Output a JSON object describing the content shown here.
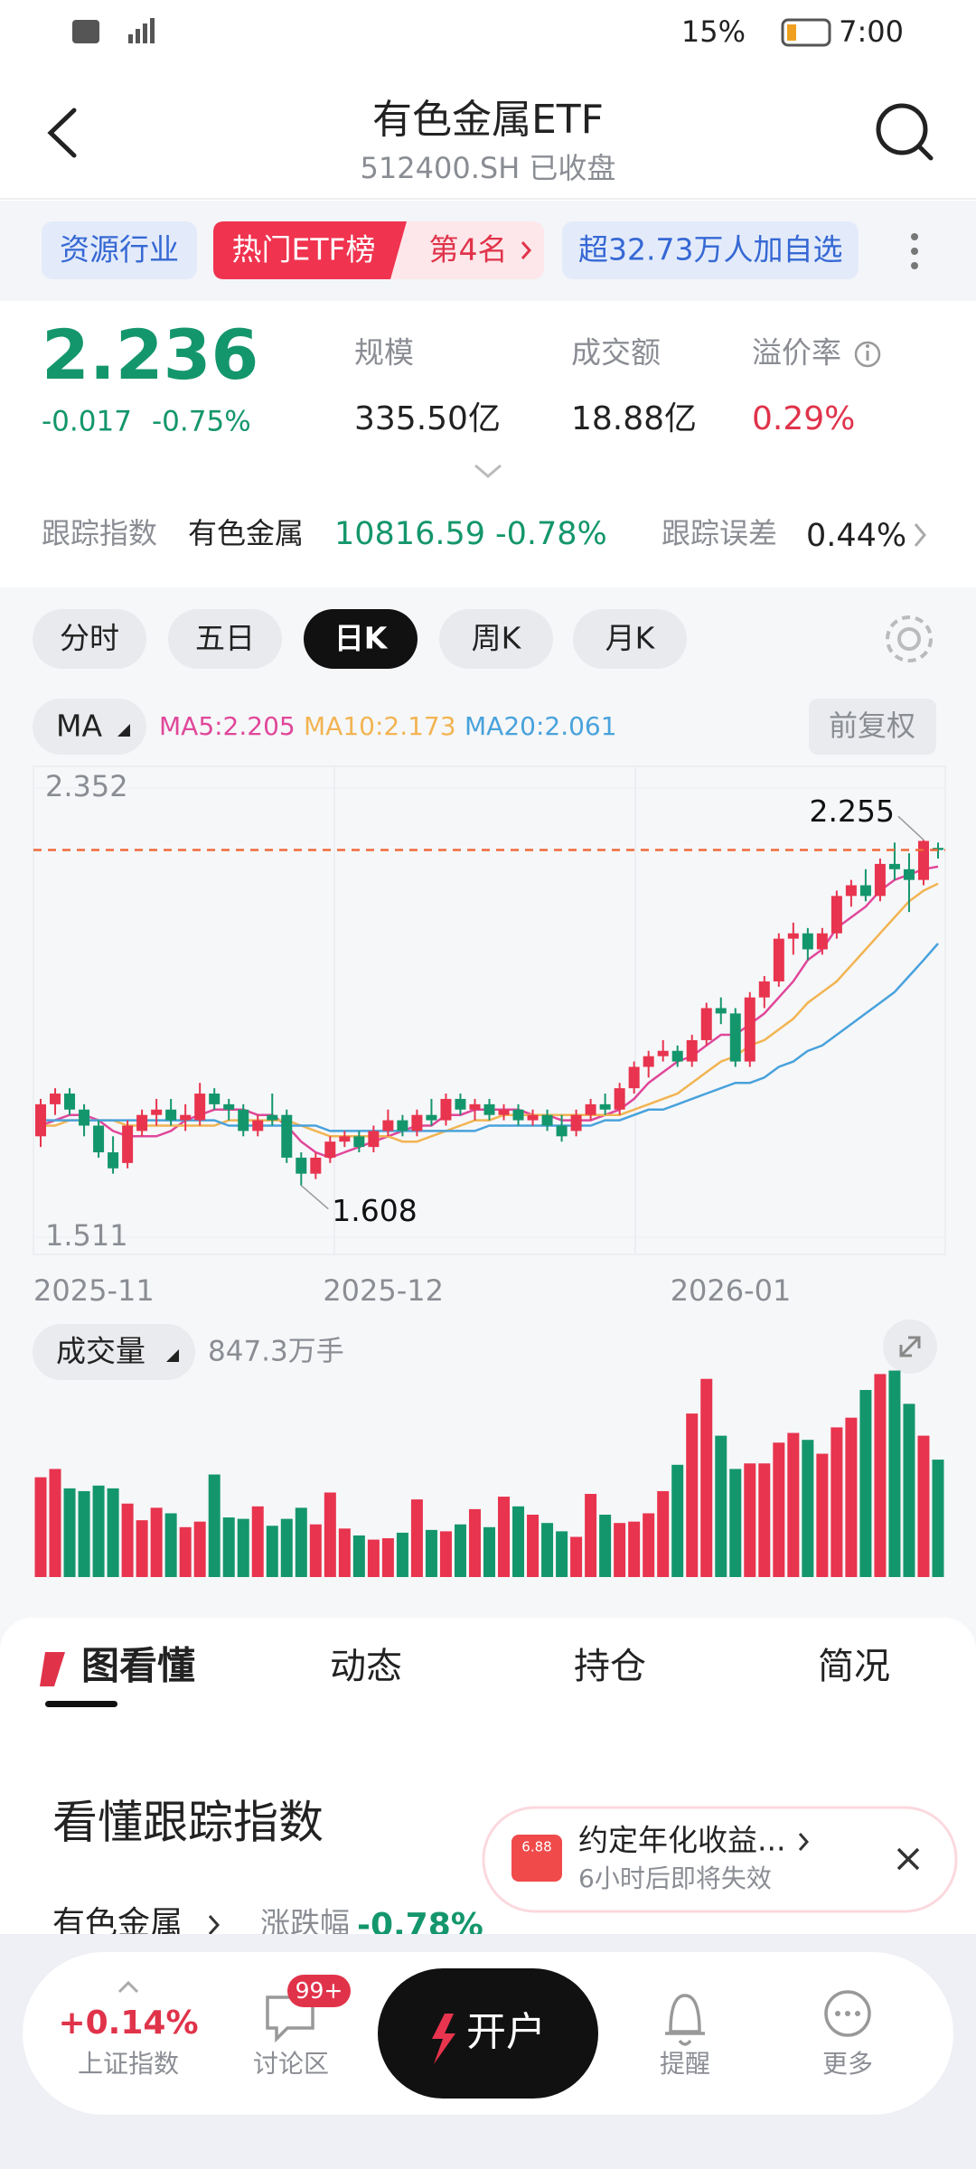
{
  "status_bar": {
    "battery": "15%",
    "time": "7:00"
  },
  "header": {
    "title": "有色金属ETF",
    "subtitle": "512400.SH 已收盘"
  },
  "tags": {
    "industry": "资源行业",
    "rank_list": "热门ETF榜",
    "rank": "第4名",
    "followers": "超32.73万人加自选"
  },
  "quote": {
    "price": 2.236,
    "change": "-0.017",
    "change_pct": "-0.75%",
    "stats": [
      {
        "label": "规模",
        "value": "335.50亿"
      },
      {
        "label": "成交额",
        "value": "18.88亿"
      },
      {
        "label": "溢价率",
        "value": "0.29%"
      }
    ]
  },
  "tracking": {
    "label": "跟踪指数",
    "index": "有色金属",
    "index_value": "10816.59",
    "index_change": "-0.78%",
    "error_label": "跟踪误差",
    "error": "0.44%"
  },
  "periods": [
    "分时",
    "五日",
    "日K",
    "周K",
    "月K"
  ],
  "ma_menu": "MA",
  "adjust": "前复权",
  "chart_data": {
    "type": "candlestick",
    "up_color": "#e8344e",
    "down_color": "#14966c",
    "open": [
      1.7,
      1.76,
      1.78,
      1.75,
      1.72,
      1.67,
      1.65,
      1.71,
      1.74,
      1.75,
      1.73,
      1.73,
      1.78,
      1.76,
      1.75,
      1.71,
      1.74,
      1.74,
      1.66,
      1.63,
      1.66,
      1.69,
      1.7,
      1.68,
      1.71,
      1.73,
      1.71,
      1.74,
      1.73,
      1.77,
      1.75,
      1.76,
      1.74,
      1.75,
      1.73,
      1.74,
      1.72,
      1.71,
      1.74,
      1.76,
      1.75,
      1.79,
      1.83,
      1.85,
      1.86,
      1.84,
      1.88,
      1.94,
      1.93,
      1.84,
      1.96,
      1.99,
      2.07,
      2.08,
      2.05,
      2.08,
      2.15,
      2.17,
      2.15,
      2.21,
      2.2,
      2.18,
      2.24
    ],
    "high": [
      1.77,
      1.79,
      1.79,
      1.76,
      1.73,
      1.7,
      1.73,
      1.75,
      1.77,
      1.77,
      1.76,
      1.8,
      1.79,
      1.77,
      1.76,
      1.74,
      1.78,
      1.75,
      1.67,
      1.67,
      1.7,
      1.71,
      1.71,
      1.72,
      1.75,
      1.74,
      1.75,
      1.77,
      1.78,
      1.78,
      1.77,
      1.77,
      1.76,
      1.76,
      1.75,
      1.75,
      1.74,
      1.75,
      1.77,
      1.78,
      1.8,
      1.84,
      1.86,
      1.88,
      1.87,
      1.89,
      1.95,
      1.96,
      1.94,
      1.97,
      2.0,
      2.08,
      2.1,
      2.09,
      2.09,
      2.16,
      2.18,
      2.2,
      2.22,
      2.25,
      2.23,
      2.255,
      2.25
    ],
    "low": [
      1.68,
      1.74,
      1.74,
      1.7,
      1.66,
      1.63,
      1.64,
      1.7,
      1.72,
      1.72,
      1.71,
      1.72,
      1.75,
      1.73,
      1.7,
      1.7,
      1.72,
      1.65,
      1.608,
      1.62,
      1.65,
      1.68,
      1.67,
      1.67,
      1.7,
      1.7,
      1.7,
      1.72,
      1.72,
      1.74,
      1.73,
      1.73,
      1.73,
      1.72,
      1.72,
      1.71,
      1.69,
      1.7,
      1.73,
      1.74,
      1.74,
      1.78,
      1.81,
      1.84,
      1.83,
      1.83,
      1.87,
      1.91,
      1.83,
      1.83,
      1.94,
      1.98,
      2.04,
      2.03,
      2.04,
      2.07,
      2.13,
      2.14,
      2.14,
      2.18,
      2.12,
      2.17,
      2.22
    ],
    "close": [
      1.76,
      1.78,
      1.75,
      1.72,
      1.67,
      1.64,
      1.72,
      1.74,
      1.75,
      1.73,
      1.74,
      1.78,
      1.76,
      1.75,
      1.71,
      1.73,
      1.73,
      1.66,
      1.63,
      1.66,
      1.69,
      1.7,
      1.68,
      1.71,
      1.73,
      1.71,
      1.74,
      1.73,
      1.77,
      1.75,
      1.76,
      1.74,
      1.75,
      1.73,
      1.74,
      1.72,
      1.7,
      1.74,
      1.76,
      1.75,
      1.79,
      1.83,
      1.85,
      1.86,
      1.84,
      1.88,
      1.94,
      1.93,
      1.84,
      1.96,
      1.99,
      2.07,
      2.08,
      2.05,
      2.08,
      2.15,
      2.17,
      2.15,
      2.21,
      2.2,
      2.18,
      2.253,
      2.236
    ],
    "ma": [
      {
        "name": "MA5",
        "label": "MA5:2.205",
        "color": "#e0479a",
        "values": [
          1.72,
          1.73,
          1.74,
          1.74,
          1.73,
          1.71,
          1.7,
          1.7,
          1.7,
          1.71,
          1.73,
          1.74,
          1.75,
          1.75,
          1.75,
          1.74,
          1.74,
          1.72,
          1.69,
          1.67,
          1.66,
          1.67,
          1.68,
          1.69,
          1.7,
          1.71,
          1.72,
          1.72,
          1.74,
          1.74,
          1.75,
          1.75,
          1.75,
          1.75,
          1.74,
          1.74,
          1.73,
          1.73,
          1.73,
          1.74,
          1.75,
          1.77,
          1.8,
          1.82,
          1.84,
          1.85,
          1.87,
          1.89,
          1.89,
          1.91,
          1.93,
          1.96,
          1.99,
          2.03,
          2.05,
          2.09,
          2.11,
          2.13,
          2.16,
          2.18,
          2.19,
          2.2,
          2.205
        ]
      },
      {
        "name": "MA10",
        "label": "MA10:2.173",
        "color": "#f2b452",
        "values": [
          1.72,
          1.72,
          1.73,
          1.73,
          1.73,
          1.73,
          1.72,
          1.72,
          1.72,
          1.72,
          1.72,
          1.72,
          1.72,
          1.73,
          1.73,
          1.73,
          1.73,
          1.73,
          1.72,
          1.71,
          1.7,
          1.7,
          1.7,
          1.7,
          1.7,
          1.69,
          1.69,
          1.7,
          1.71,
          1.72,
          1.73,
          1.73,
          1.74,
          1.74,
          1.74,
          1.74,
          1.74,
          1.74,
          1.74,
          1.74,
          1.74,
          1.75,
          1.76,
          1.77,
          1.78,
          1.8,
          1.82,
          1.84,
          1.85,
          1.87,
          1.88,
          1.9,
          1.92,
          1.95,
          1.97,
          1.99,
          2.02,
          2.05,
          2.08,
          2.11,
          2.14,
          2.16,
          2.173
        ]
      },
      {
        "name": "MA20",
        "label": "MA20:2.061",
        "color": "#48a2dc",
        "values": [
          1.73,
          1.73,
          1.73,
          1.73,
          1.73,
          1.73,
          1.73,
          1.73,
          1.73,
          1.73,
          1.73,
          1.73,
          1.73,
          1.72,
          1.72,
          1.72,
          1.72,
          1.72,
          1.72,
          1.72,
          1.71,
          1.71,
          1.71,
          1.71,
          1.71,
          1.71,
          1.71,
          1.71,
          1.71,
          1.71,
          1.71,
          1.72,
          1.72,
          1.72,
          1.72,
          1.72,
          1.72,
          1.72,
          1.72,
          1.73,
          1.73,
          1.74,
          1.75,
          1.75,
          1.76,
          1.77,
          1.78,
          1.79,
          1.8,
          1.8,
          1.81,
          1.83,
          1.84,
          1.86,
          1.87,
          1.89,
          1.91,
          1.93,
          1.95,
          1.97,
          2.0,
          2.03,
          2.061
        ]
      }
    ],
    "ylim": [
      1.511,
      2.352
    ],
    "yticks": [
      1.511,
      2.352
    ],
    "xticks": [
      {
        "value": 0,
        "label": "2025-11"
      },
      {
        "value": 20,
        "label": "2025-12"
      },
      {
        "value": 44,
        "label": "2026-01"
      }
    ],
    "volume": {
      "title": "成交量",
      "latest": "847.3万手",
      "ylim": [
        0,
        1500
      ],
      "values": [
        720,
        780,
        640,
        620,
        660,
        640,
        530,
        410,
        500,
        460,
        360,
        400,
        740,
        430,
        420,
        510,
        370,
        420,
        500,
        380,
        610,
        350,
        300,
        270,
        280,
        320,
        560,
        340,
        330,
        380,
        490,
        360,
        580,
        510,
        450,
        390,
        330,
        290,
        600,
        450,
        390,
        400,
        460,
        620,
        810,
        1180,
        1430,
        1020,
        780,
        820,
        820,
        970,
        1040,
        990,
        890,
        1080,
        1150,
        1350,
        1465,
        1490,
        1250,
        1020,
        847.3
      ]
    }
  },
  "tabs": [
    "图看懂",
    "动态",
    "持仓",
    "简况"
  ],
  "section": {
    "title": "看懂跟踪指数",
    "index": "有色金属",
    "change_label": "涨跌幅",
    "change": "-0.78%"
  },
  "popup": {
    "badge": "6.88",
    "title": "约定年化收益...",
    "subtitle": "6小时后即将失效"
  },
  "nav": {
    "index_change": "+0.14%",
    "index_name": "上证指数",
    "forum": "讨论区",
    "badge": "99+",
    "open": "开户",
    "alert": "提醒",
    "more": "更多"
  }
}
